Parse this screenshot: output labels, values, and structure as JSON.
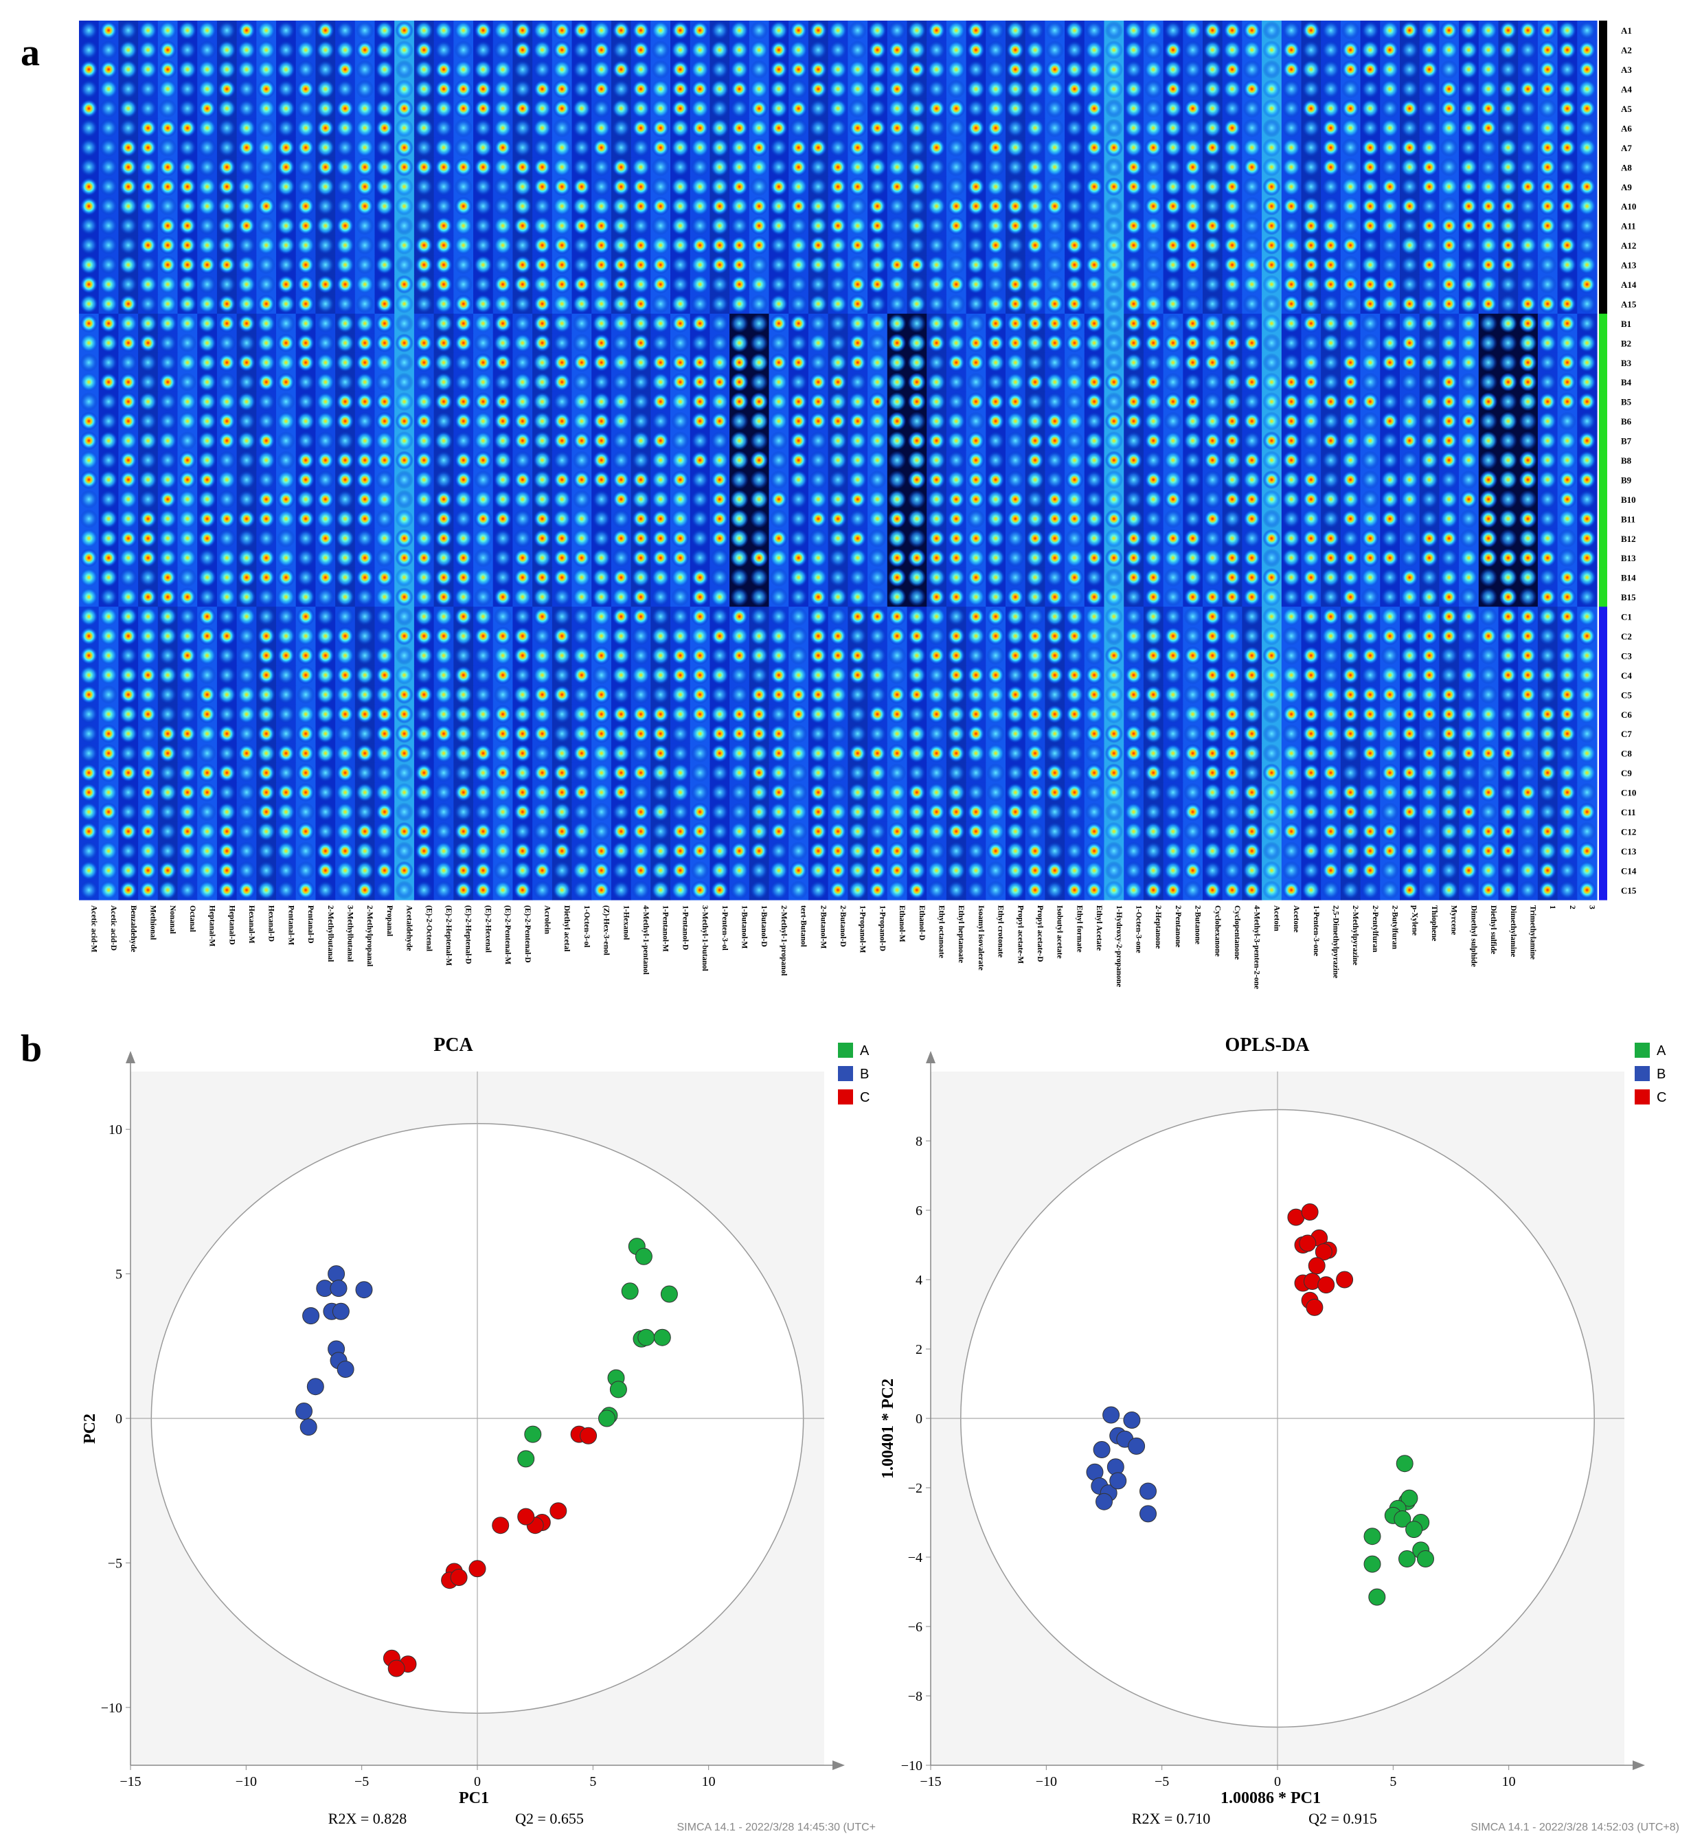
{
  "panel_a": {
    "letter": "a",
    "compounds": [
      "Acetic acid-M",
      "Acetic acid-D",
      "Benzaldehyde",
      "Methional",
      "Nonanal",
      "Octanal",
      "Heptanal-M",
      "Heptanal-D",
      "Hexanal-M",
      "Hexanal-D",
      "Pentanal-M",
      "Pentanal-D",
      "2-Methylbutanal",
      "3-Methylbutanal",
      "2-Methylpropanal",
      "Propanal",
      "Acetaldehyde",
      "(E)-2-Octenal",
      "(E)-2-Heptenal-M",
      "(E)-2-Heptenal-D",
      "(E)-2-Hexenal",
      "(E)-2-Pentenal-M",
      "(E)-2-Pentenal-D",
      "Acrolein",
      "Diethyl acetal",
      "1-Octen-3-ol",
      "(Z)-Hex-3-enol",
      "1-Hexanol",
      "4-Methyl-1-pentanol",
      "1-Pentanol-M",
      "1-Pentanol-D",
      "3-Methyl-1-butanol",
      "1-Penten-3-ol",
      "1-Butanol-M",
      "1-Butanol-D",
      "2-Methyl-1-propanol",
      "tert-Butanol",
      "2-Butanol-M",
      "2-Butanol-D",
      "1-Propanol-M",
      "1-Propanol-D",
      "Ethanol-M",
      "Ethanol-D",
      "Ethyl octanoate",
      "Ethyl heptanoate",
      "Isoamyl isovalerate",
      "Ethyl crotonate",
      "Propyl acetate-M",
      "Propyl acetate-D",
      "Isobutyl acetate",
      "Ethyl formate",
      "Ethyl Acetate",
      "1-Hydroxy-2-propanone",
      "1-Octen-3-one",
      "2-Heptanone",
      "2-Pentanone",
      "2-Butanone",
      "Cyclohexanone",
      "Cyclopentanone",
      "4-Methyl-3-penten-2-one",
      "Acetoin",
      "Acetone",
      "1-Penten-3-one",
      "2,5-Dimethylpyrazine",
      "2-Methylpyrazine",
      "2-Pentylfuran",
      "2-Butylfuran",
      "p-Xylene",
      "Thiophene",
      "Myrcene",
      "Dimethyl sulphide",
      "Diethyl sulfide",
      "Dimethylamine",
      "Trimethylamine",
      "1",
      "2",
      "3"
    ],
    "groups": [
      {
        "name": "A",
        "color": "#000000",
        "samples": [
          "A1",
          "A2",
          "A3",
          "A4",
          "A5",
          "A6",
          "A7",
          "A8",
          "A9",
          "A10",
          "A11",
          "A12",
          "A13",
          "A14",
          "A15"
        ]
      },
      {
        "name": "B",
        "color": "#22dd22",
        "samples": [
          "B1",
          "B2",
          "B3",
          "B4",
          "B5",
          "B6",
          "B7",
          "B8",
          "B9",
          "B10",
          "B11",
          "B12",
          "B13",
          "B14",
          "B15"
        ]
      },
      {
        "name": "C",
        "color": "#1a1aee",
        "samples": [
          "C1",
          "C2",
          "C3",
          "C4",
          "C5",
          "C6",
          "C7",
          "C8",
          "C9",
          "C10",
          "C11",
          "C12",
          "C13",
          "C14",
          "C15"
        ]
      }
    ]
  },
  "panel_b": {
    "letter": "b"
  },
  "chart_data": [
    {
      "type": "scatter",
      "title": "PCA",
      "xlabel": "PC1",
      "ylabel": "PC2",
      "xlim": [
        -15,
        15
      ],
      "ylim": [
        -12,
        12
      ],
      "x_ticks": [
        -15,
        -10,
        -5,
        0,
        5,
        10
      ],
      "y_ticks": [
        10,
        5,
        0,
        -5,
        -10
      ],
      "stats": [
        "R2X = 0.828",
        "Q2 = 0.655"
      ],
      "footer": "SIMCA 14.1 - 2022/3/28 14:45:30 (UTC+",
      "ellipse": {
        "rx": 14.1,
        "ry": 10.2
      },
      "legend_position": "top-right",
      "series": [
        {
          "name": "A",
          "color": "#1aab40",
          "points": [
            [
              6.9,
              5.95
            ],
            [
              7.2,
              5.6
            ],
            [
              8.3,
              4.3
            ],
            [
              6.6,
              4.4
            ],
            [
              7.1,
              2.75
            ],
            [
              7.3,
              2.8
            ],
            [
              8.0,
              2.8
            ],
            [
              6.0,
              1.4
            ],
            [
              6.1,
              1.0
            ],
            [
              5.7,
              0.1
            ],
            [
              5.6,
              0.0
            ],
            [
              2.4,
              -0.55
            ],
            [
              2.1,
              -1.4
            ]
          ]
        },
        {
          "name": "B",
          "color": "#2e4fb3",
          "points": [
            [
              -6.1,
              5.0
            ],
            [
              -6.6,
              4.5
            ],
            [
              -6.0,
              4.5
            ],
            [
              -4.9,
              4.45
            ],
            [
              -7.2,
              3.55
            ],
            [
              -6.3,
              3.7
            ],
            [
              -5.9,
              3.7
            ],
            [
              -6.1,
              2.4
            ],
            [
              -6.0,
              2.0
            ],
            [
              -5.7,
              1.7
            ],
            [
              -7.0,
              1.1
            ],
            [
              -7.5,
              0.25
            ],
            [
              -7.3,
              -0.3
            ]
          ]
        },
        {
          "name": "C",
          "color": "#dd0000",
          "points": [
            [
              4.4,
              -0.55
            ],
            [
              4.8,
              -0.6
            ],
            [
              3.5,
              -3.2
            ],
            [
              2.8,
              -3.6
            ],
            [
              2.5,
              -3.7
            ],
            [
              2.1,
              -3.4
            ],
            [
              1.0,
              -3.7
            ],
            [
              0.0,
              -5.2
            ],
            [
              -1.0,
              -5.3
            ],
            [
              -1.2,
              -5.6
            ],
            [
              -0.8,
              -5.5
            ],
            [
              -3.0,
              -8.5
            ],
            [
              -3.7,
              -8.3
            ],
            [
              -3.5,
              -8.65
            ]
          ]
        }
      ]
    },
    {
      "type": "scatter",
      "title": "OPLS-DA",
      "xlabel": "1.00086 * PC1",
      "ylabel": "1.00401 * PC2",
      "xlim": [
        -15,
        15
      ],
      "ylim": [
        -10,
        10
      ],
      "x_ticks": [
        -15,
        -10,
        -5,
        0,
        5,
        10
      ],
      "y_ticks": [
        8,
        6,
        4,
        2,
        0,
        -2,
        -4,
        -6,
        -8,
        -10
      ],
      "stats": [
        "R2X = 0.710",
        "Q2 = 0.915"
      ],
      "footer": "SIMCA 14.1 - 2022/3/28 14:52:03 (UTC+8)",
      "ellipse": {
        "rx": 13.7,
        "ry": 8.9
      },
      "legend_position": "top-right",
      "series": [
        {
          "name": "A",
          "color": "#1aab40",
          "points": [
            [
              5.5,
              -1.3
            ],
            [
              5.6,
              -2.4
            ],
            [
              5.7,
              -2.3
            ],
            [
              5.2,
              -2.6
            ],
            [
              5.0,
              -2.8
            ],
            [
              5.4,
              -2.9
            ],
            [
              6.2,
              -3.0
            ],
            [
              5.9,
              -3.2
            ],
            [
              4.1,
              -3.4
            ],
            [
              6.2,
              -3.8
            ],
            [
              6.4,
              -4.05
            ],
            [
              5.6,
              -4.05
            ],
            [
              4.1,
              -4.2
            ],
            [
              4.3,
              -5.15
            ]
          ]
        },
        {
          "name": "B",
          "color": "#2e4fb3",
          "points": [
            [
              -7.2,
              0.1
            ],
            [
              -6.3,
              -0.05
            ],
            [
              -7.6,
              -0.9
            ],
            [
              -6.9,
              -0.5
            ],
            [
              -6.6,
              -0.6
            ],
            [
              -6.1,
              -0.8
            ],
            [
              -7.0,
              -1.4
            ],
            [
              -7.9,
              -1.55
            ],
            [
              -7.7,
              -1.95
            ],
            [
              -7.3,
              -2.15
            ],
            [
              -6.9,
              -1.8
            ],
            [
              -7.5,
              -2.4
            ],
            [
              -5.6,
              -2.1
            ],
            [
              -5.6,
              -2.75
            ]
          ]
        },
        {
          "name": "C",
          "color": "#dd0000",
          "points": [
            [
              0.8,
              5.8
            ],
            [
              1.4,
              5.95
            ],
            [
              1.8,
              5.2
            ],
            [
              1.1,
              5.0
            ],
            [
              1.3,
              5.05
            ],
            [
              2.2,
              4.85
            ],
            [
              2.0,
              4.8
            ],
            [
              1.7,
              4.4
            ],
            [
              1.1,
              3.9
            ],
            [
              1.5,
              3.95
            ],
            [
              2.9,
              4.0
            ],
            [
              2.1,
              3.85
            ],
            [
              1.4,
              3.4
            ],
            [
              1.6,
              3.2
            ]
          ]
        }
      ]
    }
  ]
}
